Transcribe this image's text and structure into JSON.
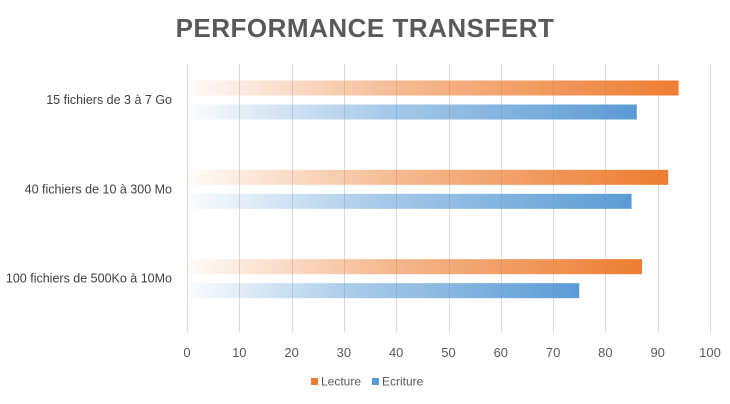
{
  "chart_data": {
    "type": "bar",
    "orientation": "horizontal",
    "title": "PERFORMANCE TRANSFERT",
    "categories": [
      "15 fichiers de 3 à 7 Go",
      "40 fichiers de 10 à 300 Mo",
      "100 fichiers de 500Ko à 10Mo"
    ],
    "series": [
      {
        "name": "Lecture",
        "values": [
          94,
          92,
          87
        ],
        "color": "#ED7D31",
        "gradient": "fade-in-left"
      },
      {
        "name": "Ecriture",
        "values": [
          86,
          85,
          75
        ],
        "color": "#5B9BD5",
        "gradient": "fade-in-left"
      }
    ],
    "xlim": [
      0,
      100
    ],
    "xticks": [
      "0",
      "10",
      "20",
      "30",
      "40",
      "50",
      "60",
      "70",
      "80",
      "90",
      "100"
    ],
    "grid": true,
    "legend": "bottom",
    "xlabel": "",
    "ylabel": ""
  },
  "colors": {
    "title": "#595959",
    "grid": "#D9D9D9",
    "axis_text": "#595959",
    "category_text": "#404040"
  }
}
